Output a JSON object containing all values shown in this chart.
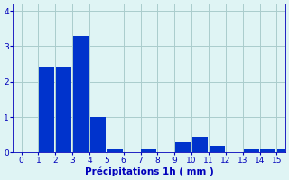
{
  "bin_edges": [
    0,
    1,
    2,
    3,
    4,
    5,
    6,
    7,
    8,
    9,
    10,
    11,
    12,
    13,
    14,
    15
  ],
  "bar_heights": [
    0,
    2.4,
    2.4,
    3.3,
    1.0,
    0.08,
    0,
    0.08,
    0,
    0.3,
    0.45,
    0.2,
    0,
    0.08,
    0.08,
    0.08
  ],
  "bar_color": "#0033cc",
  "background_color": "#dff4f4",
  "grid_color": "#aacccc",
  "xlabel": "Précipitations 1h ( mm )",
  "xlabel_color": "#0000bb",
  "tick_color": "#0000bb",
  "ylim": [
    0,
    4.2
  ],
  "xlim": [
    -0.5,
    15.5
  ],
  "yticks": [
    0,
    1,
    2,
    3,
    4
  ],
  "xticks": [
    0,
    1,
    2,
    3,
    4,
    5,
    6,
    7,
    8,
    9,
    10,
    11,
    12,
    13,
    14,
    15
  ],
  "figsize": [
    3.2,
    2.0
  ],
  "dpi": 100
}
